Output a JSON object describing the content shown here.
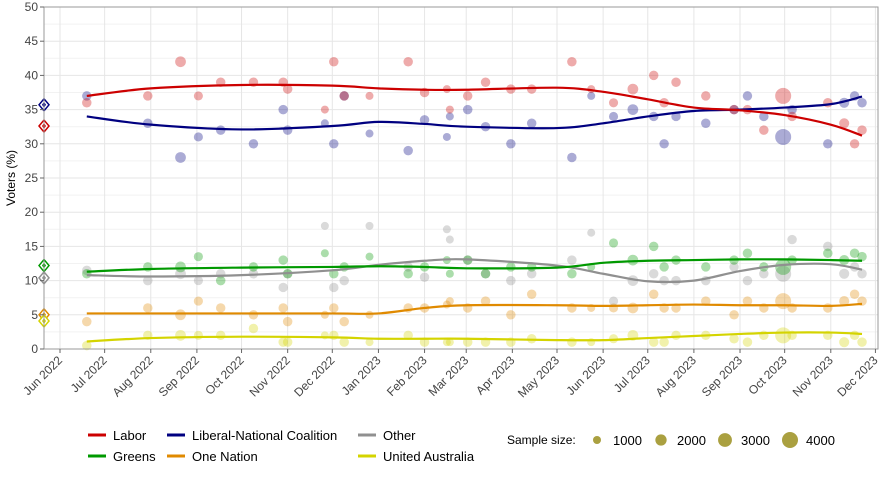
{
  "chart_data": {
    "type": "scatter",
    "ylabel": "Voters (%)",
    "xlabel": "",
    "ylim": [
      0,
      50
    ],
    "yticks": [
      "0",
      "5",
      "10",
      "15",
      "20",
      "25",
      "30",
      "35",
      "40",
      "45",
      "50"
    ],
    "xlim": [
      "2022-05-22",
      "2023-12-04"
    ],
    "xticks": [
      {
        "date": "2022-06-01",
        "label": "Jun 2022"
      },
      {
        "date": "2022-07-01",
        "label": "Jul 2022"
      },
      {
        "date": "2022-08-01",
        "label": "Aug 2022"
      },
      {
        "date": "2022-09-01",
        "label": "Sep 2022"
      },
      {
        "date": "2022-10-01",
        "label": "Oct 2022"
      },
      {
        "date": "2022-11-01",
        "label": "Nov 2022"
      },
      {
        "date": "2022-12-01",
        "label": "Dec 2022"
      },
      {
        "date": "2023-01-01",
        "label": "Jan 2023"
      },
      {
        "date": "2023-02-01",
        "label": "Feb 2023"
      },
      {
        "date": "2023-03-01",
        "label": "Mar 2023"
      },
      {
        "date": "2023-04-01",
        "label": "Apr 2023"
      },
      {
        "date": "2023-05-01",
        "label": "May 2023"
      },
      {
        "date": "2023-06-01",
        "label": "Jun 2023"
      },
      {
        "date": "2023-07-01",
        "label": "Jul 2023"
      },
      {
        "date": "2023-08-01",
        "label": "Aug 2023"
      },
      {
        "date": "2023-09-01",
        "label": "Sep 2023"
      },
      {
        "date": "2023-10-01",
        "label": "Oct 2023"
      },
      {
        "date": "2023-11-01",
        "label": "Nov 2023"
      },
      {
        "date": "2023-12-01",
        "label": "Dec 2023"
      }
    ],
    "grid": true,
    "legend_position": "bottom",
    "series": [
      {
        "name": "Labor",
        "color": "#cc0000",
        "election_result": 32.6
      },
      {
        "name": "Liberal-National Coalition",
        "color": "#000080",
        "election_result": 35.7
      },
      {
        "name": "Other",
        "color": "#909090",
        "election_result": 10.4
      },
      {
        "name": "Greens",
        "color": "#009900",
        "election_result": 12.2
      },
      {
        "name": "One Nation",
        "color": "#e08a00",
        "election_result": 5.0
      },
      {
        "name": "United Australia",
        "color": "#d4d400",
        "election_result": 4.1
      }
    ],
    "trend_dates": [
      "2022-06-19",
      "2022-08-01",
      "2022-10-01",
      "2022-12-01",
      "2023-01-01",
      "2023-02-01",
      "2023-03-01",
      "2023-05-01",
      "2023-06-01",
      "2023-07-01",
      "2023-08-01",
      "2023-09-01",
      "2023-10-01",
      "2023-11-01",
      "2023-11-22"
    ],
    "trends": {
      "Labor": [
        37,
        38.1,
        38.6,
        38.5,
        38.1,
        37.9,
        37.9,
        38.2,
        37.6,
        36.5,
        35.3,
        34.9,
        34.2,
        32.8,
        31.2
      ],
      "Liberal-National Coalition": [
        34,
        32.8,
        32.1,
        32.6,
        33.2,
        32.9,
        32.5,
        32.3,
        33.0,
        34.0,
        34.8,
        35.0,
        35.3,
        35.8,
        36.9
      ],
      "Other": [
        10.8,
        10.6,
        10.8,
        11.5,
        12.3,
        12.9,
        13.1,
        12.2,
        11.0,
        9.9,
        10.0,
        11.4,
        12.3,
        12.4,
        11.6
      ],
      "Greens": [
        11.3,
        11.7,
        11.9,
        12.0,
        12.1,
        12.0,
        11.8,
        11.9,
        12.6,
        12.9,
        13.0,
        13.1,
        13.1,
        13.0,
        12.9
      ],
      "One Nation": [
        5.2,
        5.2,
        5.2,
        5.2,
        5.2,
        6.0,
        6.4,
        6.4,
        6.3,
        6.4,
        6.5,
        6.4,
        6.4,
        6.3,
        6.6
      ],
      "United Australia": [
        1.1,
        1.6,
        1.8,
        1.7,
        1.5,
        1.5,
        1.5,
        1.3,
        1.3,
        1.6,
        1.9,
        2.2,
        2.4,
        2.4,
        2.2
      ]
    },
    "poll_order": [
      "Labor",
      "Liberal-National Coalition",
      "Greens",
      "Other",
      "One Nation",
      "United Australia"
    ],
    "polls": [
      {
        "date": "2022-06-19",
        "n": 1400,
        "v": [
          36,
          37,
          11,
          11.5,
          4,
          0.5
        ]
      },
      {
        "date": "2022-07-30",
        "n": 1400,
        "v": [
          37,
          33,
          12,
          10,
          6,
          2
        ]
      },
      {
        "date": "2022-08-21",
        "n": 1800,
        "v": [
          42,
          28,
          12,
          11,
          5,
          2
        ]
      },
      {
        "date": "2022-09-02",
        "n": 1300,
        "v": [
          37,
          31,
          13.5,
          10,
          7,
          2
        ]
      },
      {
        "date": "2022-09-17",
        "n": 1400,
        "v": [
          39,
          32,
          10,
          11,
          6,
          2
        ]
      },
      {
        "date": "2022-10-09",
        "n": 1400,
        "v": [
          39,
          30,
          12,
          11,
          5,
          3
        ]
      },
      {
        "date": "2022-10-29",
        "n": 1400,
        "v": [
          39,
          35,
          13,
          9,
          6,
          1
        ]
      },
      {
        "date": "2022-11-01",
        "n": 1400,
        "v": [
          38,
          32,
          11,
          11,
          4,
          1
        ]
      },
      {
        "date": "2022-11-26",
        "n": 1000,
        "v": [
          35,
          33,
          14,
          18,
          5,
          2
        ]
      },
      {
        "date": "2022-12-02",
        "n": 1400,
        "v": [
          42,
          30,
          11,
          9,
          6,
          2
        ]
      },
      {
        "date": "2022-12-09",
        "n": 1400,
        "v": [
          37,
          37,
          12,
          10,
          4,
          1
        ]
      },
      {
        "date": "2022-12-26",
        "n": 1000,
        "v": [
          37,
          31.5,
          13.5,
          18,
          5,
          1
        ]
      },
      {
        "date": "2023-01-21",
        "n": 1400,
        "v": [
          42,
          29,
          11,
          12,
          6,
          2
        ]
      },
      {
        "date": "2023-02-01",
        "n": 1400,
        "v": [
          37.5,
          33.5,
          12,
          10.5,
          6,
          1
        ]
      },
      {
        "date": "2023-02-16",
        "n": 1000,
        "v": [
          38,
          31,
          13,
          17.5,
          6.5,
          1
        ]
      },
      {
        "date": "2023-02-18",
        "n": 1000,
        "v": [
          35,
          34,
          11,
          16,
          7,
          1
        ]
      },
      {
        "date": "2023-03-02",
        "n": 1400,
        "v": [
          37,
          35,
          13,
          13,
          6,
          1
        ]
      },
      {
        "date": "2023-03-14",
        "n": 1400,
        "v": [
          39,
          32.5,
          11,
          11,
          7,
          1
        ]
      },
      {
        "date": "2023-03-31",
        "n": 1400,
        "v": [
          38,
          30,
          12,
          10,
          5,
          1
        ]
      },
      {
        "date": "2023-04-14",
        "n": 1400,
        "v": [
          38,
          33,
          12,
          11,
          8,
          1.5
        ]
      },
      {
        "date": "2023-05-11",
        "n": 1400,
        "v": [
          42,
          28,
          11,
          13,
          6,
          1
        ]
      },
      {
        "date": "2023-05-24",
        "n": 1000,
        "v": [
          38,
          37,
          12,
          17,
          6,
          1
        ]
      },
      {
        "date": "2023-06-08",
        "n": 1300,
        "v": [
          36,
          34,
          15.5,
          7,
          6,
          1.5
        ]
      },
      {
        "date": "2023-06-21",
        "n": 1800,
        "v": [
          38,
          35,
          13,
          10,
          6,
          2
        ]
      },
      {
        "date": "2023-07-05",
        "n": 1400,
        "v": [
          40,
          34,
          15,
          11,
          8,
          1
        ]
      },
      {
        "date": "2023-07-12",
        "n": 1400,
        "v": [
          36,
          30,
          12,
          10,
          6,
          1
        ]
      },
      {
        "date": "2023-07-20",
        "n": 1400,
        "v": [
          39,
          34,
          13,
          10,
          6,
          2
        ]
      },
      {
        "date": "2023-08-09",
        "n": 1400,
        "v": [
          37,
          33,
          12,
          10,
          7,
          2
        ]
      },
      {
        "date": "2023-08-28",
        "n": 1400,
        "v": [
          35,
          35,
          13,
          12,
          5,
          1.5
        ]
      },
      {
        "date": "2023-09-06",
        "n": 1400,
        "v": [
          35,
          37,
          14,
          10,
          7,
          1
        ]
      },
      {
        "date": "2023-09-17",
        "n": 1400,
        "v": [
          32,
          34,
          12,
          11,
          6,
          2
        ]
      },
      {
        "date": "2023-09-30",
        "n": 4000,
        "v": [
          37,
          31,
          12,
          11,
          7,
          2
        ]
      },
      {
        "date": "2023-10-06",
        "n": 1400,
        "v": [
          34,
          35,
          13,
          16,
          6,
          2
        ]
      },
      {
        "date": "2023-10-30",
        "n": 1400,
        "v": [
          36,
          30,
          14,
          15,
          6,
          2
        ]
      },
      {
        "date": "2023-11-10",
        "n": 1600,
        "v": [
          33,
          36,
          13,
          11,
          7,
          1
        ]
      },
      {
        "date": "2023-11-17",
        "n": 1400,
        "v": [
          30,
          37,
          14,
          12,
          8,
          2
        ]
      },
      {
        "date": "2023-11-22",
        "n": 1400,
        "v": [
          32,
          36,
          13.5,
          11,
          7,
          1
        ]
      }
    ]
  },
  "legend": {
    "items": [
      {
        "label": "Labor",
        "color": "#cc0000"
      },
      {
        "label": "Liberal-National Coalition",
        "color": "#000080"
      },
      {
        "label": "Other",
        "color": "#909090"
      },
      {
        "label": "Greens",
        "color": "#009900"
      },
      {
        "label": "One Nation",
        "color": "#e08a00"
      },
      {
        "label": "United Australia",
        "color": "#d4d400"
      }
    ],
    "sample_size_title": "Sample size:",
    "sample_sizes": [
      {
        "n": 1000,
        "label": "1000"
      },
      {
        "n": 2000,
        "label": "2000"
      },
      {
        "n": 3000,
        "label": "3000"
      },
      {
        "n": 4000,
        "label": "4000"
      }
    ],
    "sample_color": "#aaa040"
  }
}
